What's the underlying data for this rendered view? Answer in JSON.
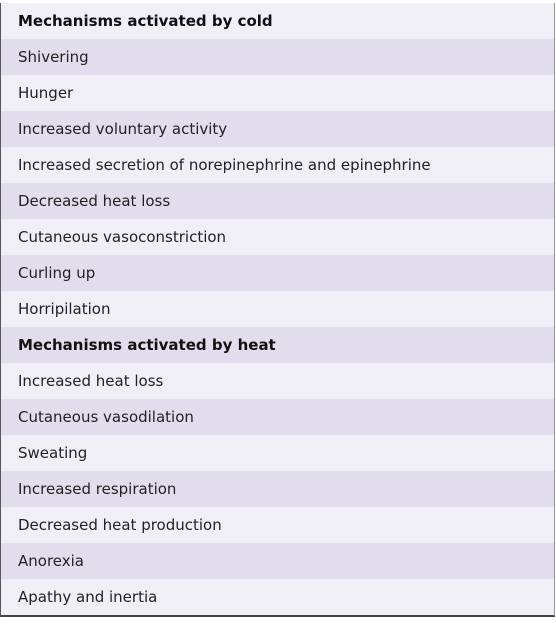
{
  "table": {
    "sections": [
      {
        "title": "Mechanisms activated by cold",
        "items": [
          "Shivering",
          "Hunger",
          "Increased voluntary activity",
          "Increased secretion of norepinephrine and epinephrine",
          "Decreased heat loss",
          "Cutaneous vasoconstriction",
          "Curling up",
          "Horripilation"
        ]
      },
      {
        "title": "Mechanisms activated by heat",
        "items": [
          "Increased heat loss",
          "Cutaneous vasodilation",
          "Sweating",
          "Increased respiration",
          "Decreased heat production",
          "Anorexia",
          "Apathy and inertia"
        ]
      }
    ]
  }
}
